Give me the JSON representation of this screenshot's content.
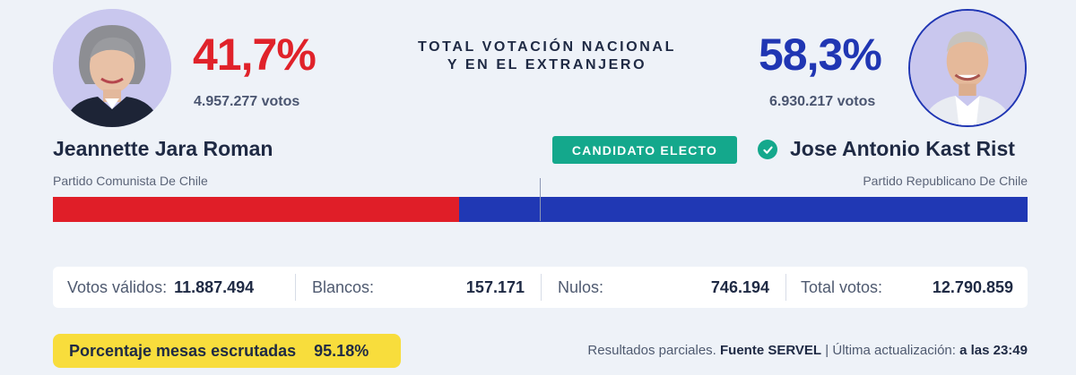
{
  "header": {
    "title_line1": "TOTAL VOTACIÓN NACIONAL",
    "title_line2": "Y EN EL EXTRANJERO"
  },
  "candidates": {
    "left": {
      "name": "Jeannette Jara Roman",
      "party": "Partido Comunista De Chile",
      "percent": "41,7%",
      "percent_value": 41.7,
      "votes": "4.957.277 votos",
      "color": "#e01e28"
    },
    "right": {
      "name": "Jose Antonio Kast Rist",
      "party": "Partido Republicano De Chile",
      "percent": "58,3%",
      "percent_value": 58.3,
      "votes": "6.930.217 votos",
      "color": "#2038b4",
      "badge": "CANDIDATO ELECTO"
    }
  },
  "stats": {
    "validos_label": "Votos válidos:",
    "validos_value": "11.887.494",
    "blancos_label": "Blancos:",
    "blancos_value": "157.171",
    "nulos_label": "Nulos:",
    "nulos_value": "746.194",
    "total_label": "Total votos:",
    "total_value": "12.790.859"
  },
  "mesas": {
    "label": "Porcentaje mesas escrutadas",
    "value": "95.18%"
  },
  "footer": {
    "partial": "Resultados parciales.",
    "source": "Fuente SERVEL",
    "separator": "|",
    "updated_label": "Última actualización:",
    "updated_time": "a las 23:49"
  }
}
